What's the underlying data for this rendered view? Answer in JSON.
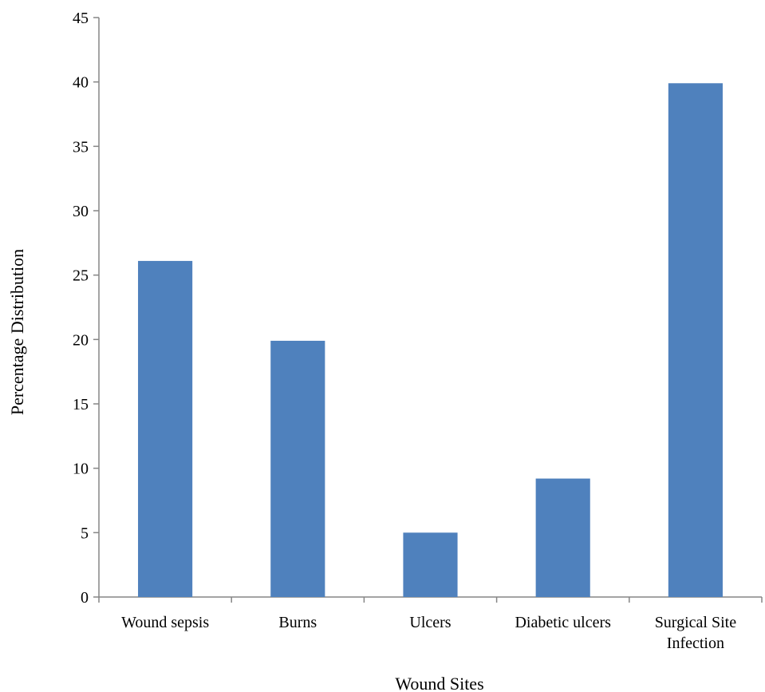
{
  "chart_data": {
    "type": "bar",
    "title": "",
    "xlabel": "Wound Sites",
    "ylabel": "Percentage Distribution",
    "categories": [
      [
        "Wound sepsis"
      ],
      [
        "Burns"
      ],
      [
        "Ulcers"
      ],
      [
        "Diabetic ulcers"
      ],
      [
        "Surgical Site",
        "Infection"
      ]
    ],
    "values": [
      26.1,
      19.9,
      5.0,
      9.2,
      39.9
    ],
    "ylim": [
      0,
      45
    ],
    "yticks": [
      0,
      5,
      10,
      15,
      20,
      25,
      30,
      35,
      40,
      45
    ],
    "grid": false,
    "legend": "none",
    "bar_color": "#4f81bd",
    "axis_color": "#868686"
  }
}
